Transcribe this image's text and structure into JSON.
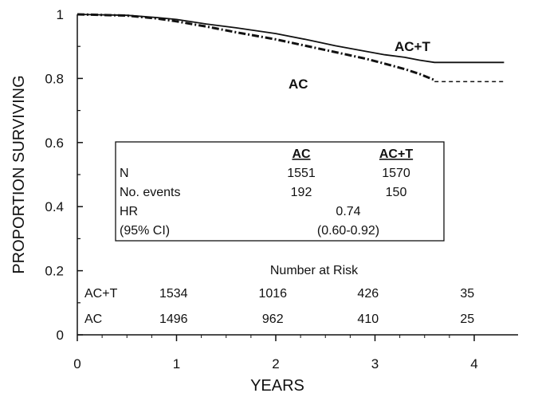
{
  "chart_data": {
    "type": "line",
    "xlabel": "YEARS",
    "ylabel": "PROPORTION SURVIVING",
    "xlim": [
      0,
      4.4
    ],
    "ylim": [
      0,
      1
    ],
    "xticks": [
      "0",
      "1",
      "2",
      "3",
      "4"
    ],
    "yticks": [
      "0",
      "0.2",
      "0.4",
      "0.6",
      "0.8",
      "1"
    ],
    "grid": false,
    "series": [
      {
        "name": "AC+T",
        "style": "solid",
        "x": [
          0,
          0.5,
          0.8,
          1.0,
          1.3,
          1.6,
          2.0,
          2.3,
          2.6,
          2.9,
          3.1,
          3.3,
          3.45,
          3.6,
          3.8,
          4.0,
          4.3
        ],
        "y": [
          1.0,
          0.997,
          0.99,
          0.984,
          0.97,
          0.958,
          0.94,
          0.922,
          0.902,
          0.885,
          0.874,
          0.866,
          0.857,
          0.85,
          0.85,
          0.85,
          0.85
        ]
      },
      {
        "name": "AC",
        "style": "dash-dot",
        "x": [
          0,
          0.5,
          0.8,
          1.0,
          1.3,
          1.6,
          2.0,
          2.3,
          2.6,
          2.9,
          3.1,
          3.3,
          3.45,
          3.6
        ],
        "y": [
          1.0,
          0.996,
          0.987,
          0.978,
          0.962,
          0.944,
          0.922,
          0.902,
          0.882,
          0.862,
          0.846,
          0.829,
          0.814,
          0.795
        ],
        "extension": {
          "style": "dashed",
          "x": [
            3.6,
            4.3
          ],
          "y": [
            0.79,
            0.79
          ]
        }
      }
    ],
    "stats_table": {
      "headers": [
        "",
        "AC",
        "AC+T"
      ],
      "rows": [
        {
          "label": "N",
          "ac": "1551",
          "act": "1570"
        },
        {
          "label": "No. events",
          "ac": "192",
          "act": "150"
        },
        {
          "label": "HR",
          "merged": "0.74"
        },
        {
          "label": "(95% CI)",
          "merged": "(0.60-0.92)"
        }
      ]
    },
    "number_at_risk": {
      "title": "Number at Risk",
      "rows": [
        {
          "label": "AC+T",
          "values": [
            "1534",
            "1016",
            "426",
            "35"
          ]
        },
        {
          "label": "AC",
          "values": [
            "1496",
            "962",
            "410",
            "25"
          ]
        }
      ]
    }
  }
}
